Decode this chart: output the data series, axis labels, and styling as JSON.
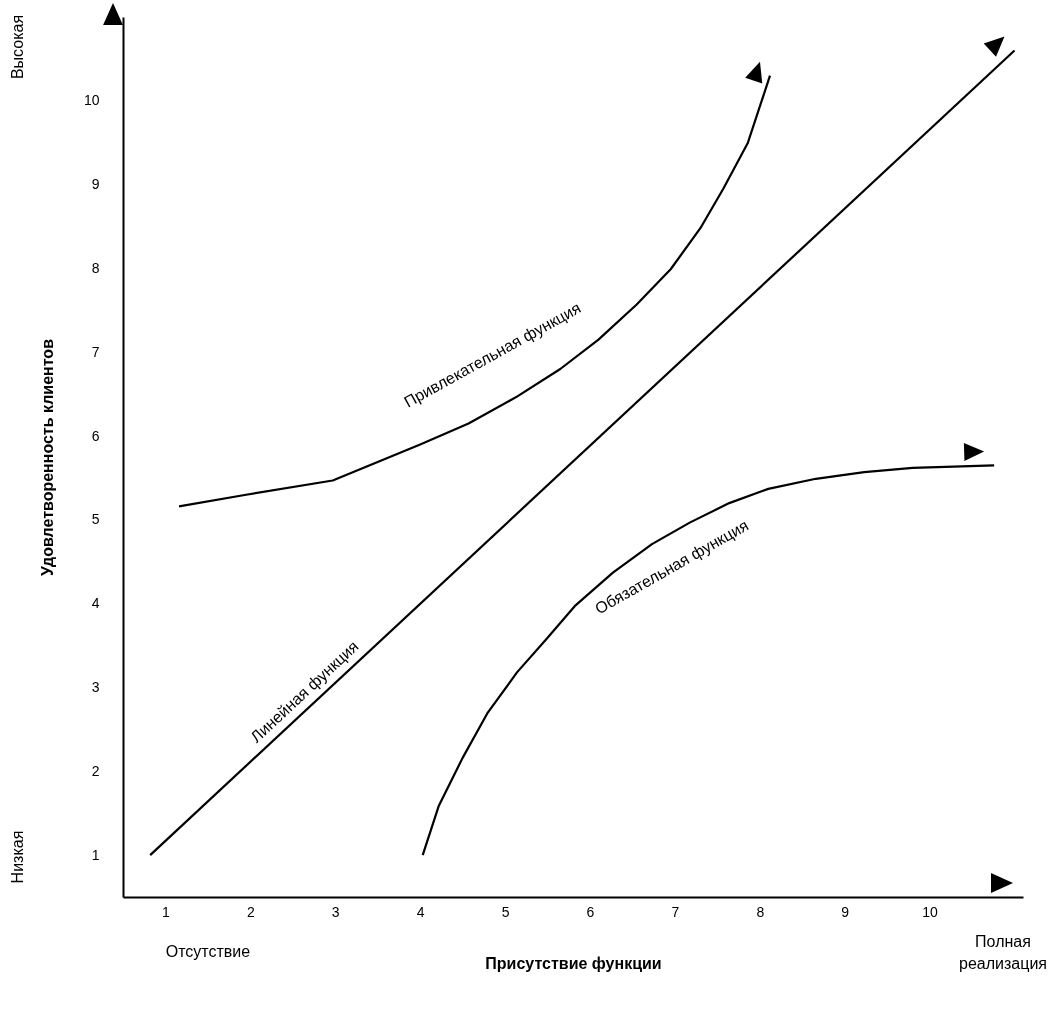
{
  "chart_data": {
    "type": "line",
    "xlabel": "Присутствие функции",
    "ylabel": "Удовлетворенность клиентов",
    "annotations": [
      "Высокая",
      "Низкая",
      "Отсутствие",
      "Полная реализация"
    ],
    "xlim": [
      0.5,
      11.1
    ],
    "ylim": [
      0.5,
      11
    ],
    "xticks": [
      1,
      2,
      3,
      4,
      5,
      6,
      7,
      8,
      9,
      10
    ],
    "yticks": [
      1,
      2,
      3,
      4,
      5,
      6,
      7,
      8,
      9,
      10
    ],
    "line_style": "solid",
    "marker": "none",
    "series": [
      {
        "name": "Привлекательная функция",
        "color": "#000000",
        "x": [
          1.16,
          1.95,
          2.97,
          4.0,
          4.57,
          5.14,
          5.65,
          6.1,
          6.55,
          6.95,
          7.3,
          7.57,
          7.86,
          8.12
        ],
        "values": [
          5.16,
          5.3,
          5.47,
          5.9,
          6.15,
          6.47,
          6.8,
          7.15,
          7.57,
          7.99,
          8.48,
          8.95,
          9.5,
          10.3
        ]
      },
      {
        "name": "Линейная функция",
        "color": "#000000",
        "x": [
          0.82,
          11.0
        ],
        "values": [
          1.0,
          10.6
        ]
      },
      {
        "name": "Обязательная функция",
        "color": "#000000",
        "x": [
          4.03,
          4.22,
          4.5,
          4.79,
          5.14,
          5.48,
          5.82,
          6.27,
          6.73,
          7.18,
          7.64,
          8.1,
          8.66,
          9.23,
          9.8,
          10.76
        ],
        "values": [
          1.0,
          1.59,
          2.16,
          2.69,
          3.18,
          3.57,
          3.97,
          4.37,
          4.71,
          4.97,
          5.2,
          5.37,
          5.49,
          5.57,
          5.62,
          5.65
        ]
      }
    ]
  }
}
